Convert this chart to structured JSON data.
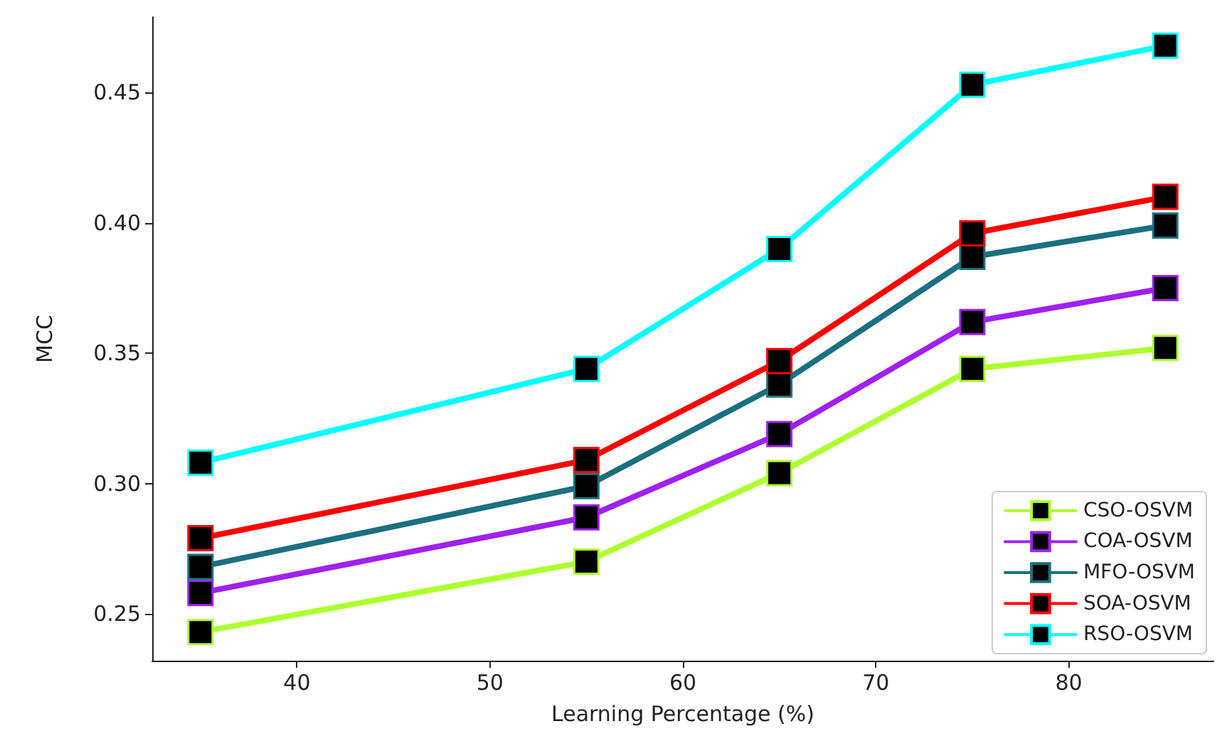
{
  "chart_data": {
    "type": "line",
    "xlabel": "Learning Percentage (%)",
    "ylabel": "MCC",
    "x": [
      35,
      55,
      65,
      75,
      85
    ],
    "xlim": [
      32.5,
      87.5
    ],
    "xticks": [
      40,
      50,
      60,
      70,
      80
    ],
    "ylim": [
      0.232,
      0.479
    ],
    "yticks": [
      0.25,
      {
        "value": 0.3,
        "label": "0.30"
      },
      0.35,
      {
        "value": 0.4,
        "label": "0.40"
      },
      0.45
    ],
    "grid": false,
    "legend": "bottom right",
    "marker": "square",
    "line_style": "solid",
    "series": [
      {
        "name": "CSO-OSVM",
        "color": "#adff2f",
        "values": [
          0.243,
          0.27,
          0.304,
          0.344,
          0.352
        ]
      },
      {
        "name": "COA-OSVM",
        "color": "#a020f0",
        "values": [
          0.258,
          0.287,
          0.319,
          0.362,
          0.375
        ]
      },
      {
        "name": "MFO-OSVM",
        "color": "#1a7080",
        "values": [
          0.268,
          0.299,
          0.338,
          0.387,
          0.399
        ]
      },
      {
        "name": "SOA-OSVM",
        "color": "#ff0000",
        "values": [
          0.279,
          0.309,
          0.347,
          0.396,
          0.41
        ]
      },
      {
        "name": "RSO-OSVM",
        "color": "#00ffff",
        "values": [
          0.308,
          0.344,
          0.39,
          0.453,
          0.468
        ]
      }
    ]
  }
}
